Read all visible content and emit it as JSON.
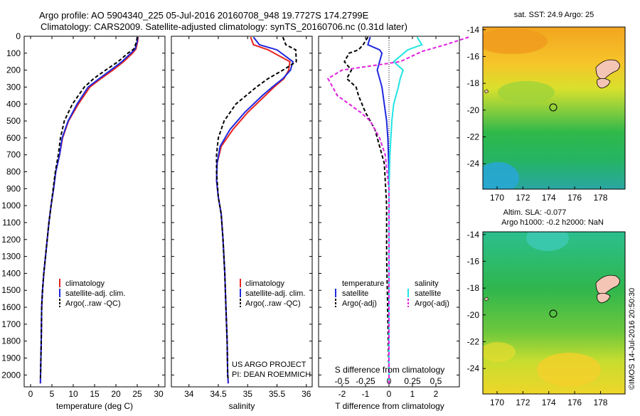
{
  "title": {
    "line1": "Argo profile: AO 5904340_225 05-Jul-2016 20160708_948 19.7727S 174.2799E",
    "line2": "Climatology: CARS2009. Satellite-adjusted climatology: synTS_20160706.nc (0.31d later)"
  },
  "colors": {
    "climatology": "#e8251f",
    "satellite": "#1f28e0",
    "argo": "#000000",
    "sal_satellite": "#21e3e3",
    "sal_argo": "#e020e0"
  },
  "depth_axis": {
    "ticks": [
      "0",
      "100",
      "200",
      "300",
      "400",
      "500",
      "600",
      "700",
      "800",
      "900",
      "1000",
      "1100",
      "1200",
      "1300",
      "1400",
      "1500",
      "1600",
      "1700",
      "1800",
      "1900",
      "2000"
    ],
    "range": [
      0,
      2070
    ]
  },
  "chart_data": [
    {
      "type": "line",
      "xlabel": "temperature (deg C)",
      "xlim": [
        -1.5,
        31.5
      ],
      "xticks": [
        "0",
        "5",
        "10",
        "15",
        "20",
        "25",
        "30"
      ],
      "ylim": [
        2070,
        0
      ],
      "legend": [
        "climatology",
        "satellite-adj. clim.",
        "Argo(..raw -QC)"
      ],
      "series": [
        {
          "name": "climatology",
          "x": [
            25.2,
            25.1,
            24.7,
            23.9,
            21.8,
            19.3,
            16.5,
            13.9,
            11.2,
            8.9,
            7.5,
            6.8,
            5.9,
            5.4,
            4.8,
            4.3,
            3.9,
            3.5,
            3.1,
            2.8,
            2.6,
            2.5,
            2.3
          ],
          "y": [
            5,
            30,
            75,
            100,
            150,
            200,
            250,
            300,
            400,
            500,
            600,
            700,
            800,
            900,
            1000,
            1100,
            1200,
            1300,
            1400,
            1500,
            1600,
            1800,
            2050
          ]
        },
        {
          "name": "satellite-adj. clim.",
          "x": [
            25.1,
            25.0,
            24.5,
            23.5,
            21.4,
            18.8,
            16.1,
            13.5,
            10.9,
            8.8,
            7.4,
            6.8,
            5.9,
            5.4,
            4.8,
            4.3,
            3.9,
            3.5,
            3.1,
            2.8,
            2.6,
            2.5,
            2.3
          ],
          "y": [
            5,
            30,
            75,
            100,
            150,
            200,
            250,
            300,
            400,
            500,
            600,
            700,
            800,
            900,
            1000,
            1100,
            1200,
            1300,
            1400,
            1500,
            1600,
            1800,
            2050
          ]
        },
        {
          "name": "Argo(..raw -QC)",
          "x": [
            25.0,
            24.8,
            24.2,
            22.8,
            20.5,
            17.6,
            14.8,
            12.6,
            9.8,
            7.9,
            7.0,
            6.5,
            5.8,
            5.3,
            4.8,
            4.3,
            3.9,
            3.5,
            3.1,
            2.8,
            2.6,
            2.5,
            2.3
          ],
          "y": [
            5,
            35,
            75,
            100,
            150,
            200,
            250,
            300,
            400,
            500,
            600,
            700,
            800,
            900,
            1000,
            1100,
            1200,
            1300,
            1400,
            1500,
            1600,
            1800,
            2030
          ]
        }
      ]
    },
    {
      "type": "line",
      "xlabel": "salinity",
      "xlim": [
        33.7,
        36.1
      ],
      "xticks": [
        "34",
        "34.5",
        "35",
        "35.5",
        "36"
      ],
      "ylim": [
        2070,
        0
      ],
      "legend": [
        "climatology",
        "satellite-adj. clim.",
        "Argo(..raw -QC)"
      ],
      "annotation": [
        "US ARGO PROJECT",
        "PI: DEAN ROEMMICH"
      ],
      "series": [
        {
          "name": "climatology",
          "x": [
            35.05,
            35.1,
            35.35,
            35.72,
            35.7,
            35.62,
            35.45,
            35.3,
            35.0,
            34.75,
            34.55,
            34.48,
            34.47,
            34.5,
            34.55,
            34.58,
            34.61,
            34.63,
            34.65,
            34.66,
            34.67
          ],
          "y": [
            5,
            50,
            80,
            150,
            200,
            250,
            300,
            350,
            450,
            550,
            650,
            750,
            850,
            950,
            1050,
            1200,
            1400,
            1600,
            1800,
            2000,
            2050
          ]
        },
        {
          "name": "satellite-adj. clim.",
          "x": [
            35.1,
            35.2,
            35.5,
            35.77,
            35.73,
            35.6,
            35.42,
            35.25,
            34.95,
            34.7,
            34.53,
            34.48,
            34.47,
            34.5,
            34.55,
            34.58,
            34.61,
            34.63,
            34.65,
            34.66,
            34.67
          ],
          "y": [
            5,
            50,
            80,
            150,
            200,
            250,
            300,
            350,
            450,
            550,
            650,
            750,
            850,
            950,
            1050,
            1200,
            1400,
            1600,
            1800,
            2000,
            2050
          ]
        },
        {
          "name": "Argo(..raw -QC)",
          "x": [
            35.6,
            35.65,
            35.82,
            35.83,
            35.6,
            35.35,
            35.15,
            34.8,
            34.6,
            34.5,
            34.47,
            34.47,
            34.5,
            34.55,
            34.58,
            34.61,
            34.63,
            34.65,
            34.66,
            34.67
          ],
          "y": [
            5,
            50,
            80,
            150,
            200,
            250,
            300,
            400,
            500,
            600,
            700,
            800,
            950,
            1050,
            1200,
            1400,
            1600,
            1800,
            2000,
            2030
          ]
        }
      ]
    },
    {
      "type": "line",
      "xlabel": "T difference from climatology",
      "xlabel_top": "S difference from climatology",
      "xlim": [
        -3.0,
        3.0
      ],
      "xticks": [
        "-2",
        "-1",
        "0",
        "1",
        "2"
      ],
      "xticks_top": [
        "-0.5",
        "-0.25",
        "0",
        "0.25",
        "0.5"
      ],
      "ylim": [
        2070,
        0
      ],
      "legend_temperature": [
        "temperature",
        "satellite",
        "Argo(-adj)"
      ],
      "legend_salinity": [
        "salinity",
        "satellite",
        "Argo(-adj)"
      ],
      "series": [
        {
          "name": "temperature satellite",
          "x": [
            -0.8,
            -0.9,
            -0.4,
            -0.3,
            -0.4,
            -0.5,
            -0.4,
            -0.3,
            -0.2,
            -0.1,
            -0.05,
            0,
            0,
            0
          ],
          "y": [
            5,
            50,
            80,
            100,
            150,
            200,
            250,
            300,
            400,
            500,
            600,
            800,
            1200,
            2050
          ]
        },
        {
          "name": "temperature Argo(-adj)",
          "x": [
            -0.9,
            -1.1,
            -1.3,
            -1.7,
            -1.9,
            -1.6,
            -1.8,
            -1.4,
            -1.3,
            -1.0,
            -0.6,
            -0.4,
            -0.2,
            -0.1,
            -0.1,
            0
          ],
          "y": [
            5,
            50,
            80,
            100,
            150,
            200,
            250,
            300,
            350,
            450,
            550,
            650,
            750,
            1000,
            1300,
            2000
          ]
        },
        {
          "name": "salinity satellite",
          "x": [
            0.3,
            0.35,
            0.2,
            0.05,
            0.15,
            0.12,
            0.1,
            0.05,
            0.03,
            0.01,
            0,
            0
          ],
          "y": [
            5,
            50,
            80,
            150,
            200,
            250,
            300,
            400,
            500,
            700,
            900,
            2050
          ]
        },
        {
          "name": "salinity Argo(-adj)",
          "x": [
            0.85,
            0.6,
            0.35,
            0.12,
            -0.5,
            -0.65,
            -0.55,
            -0.3,
            -0.2,
            -0.1,
            -0.04,
            0,
            0
          ],
          "y": [
            5,
            50,
            90,
            150,
            200,
            250,
            350,
            450,
            500,
            600,
            700,
            900,
            2050
          ]
        }
      ]
    },
    {
      "type": "heatmap",
      "title": "sat. SST: 24.9  Argo: 25",
      "xticks": [
        "170",
        "172",
        "174",
        "176",
        "178"
      ],
      "yticks": [
        "-14",
        "-16",
        "-18",
        "-20",
        "-22",
        "-24"
      ]
    },
    {
      "type": "heatmap",
      "title": "Altim. SLA: -0.077",
      "subtitle": "Argo h1000: -0.2 h2000: NaN",
      "xticks": [
        "170",
        "172",
        "174",
        "176",
        "178"
      ],
      "yticks": [
        "-14",
        "-16",
        "-18",
        "-20",
        "-22",
        "-24"
      ]
    }
  ],
  "credit": "©IMOS 14-Jul-2016 20:50:30"
}
